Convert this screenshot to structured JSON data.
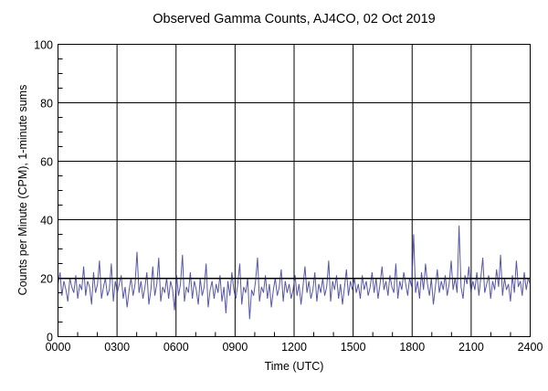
{
  "chart_data": {
    "type": "line",
    "title": "Observed Gamma Counts, AJ4CO, 02 Oct 2019",
    "xlabel": "Time (UTC)",
    "ylabel": "Counts per Minute (CPM), 1-minute sums",
    "xlim": [
      0,
      24
    ],
    "ylim": [
      0,
      100
    ],
    "x_ticks": [
      "0000",
      "0300",
      "0600",
      "0900",
      "1200",
      "1500",
      "1800",
      "2100",
      "2400"
    ],
    "y_ticks": [
      "0",
      "20",
      "40",
      "60",
      "80",
      "100"
    ],
    "grid": true,
    "series_color": "#3a3a9a",
    "series": [
      {
        "name": "CPM",
        "sample_interval_minutes": 6,
        "values": [
          18,
          22,
          14,
          19,
          16,
          12,
          20,
          17,
          15,
          21,
          13,
          18,
          16,
          24,
          14,
          19,
          17,
          11,
          22,
          15,
          18,
          26,
          13,
          17,
          20,
          14,
          16,
          25,
          12,
          19,
          15,
          18,
          21,
          13,
          17,
          10,
          16,
          20,
          14,
          18,
          29,
          15,
          19,
          13,
          17,
          22,
          11,
          16,
          24,
          14,
          18,
          27,
          12,
          17,
          15,
          20,
          13,
          19,
          16,
          9,
          21,
          14,
          18,
          28,
          12,
          17,
          15,
          22,
          13,
          19,
          16,
          11,
          20,
          14,
          17,
          25,
          10,
          16,
          19,
          13,
          18,
          15,
          21,
          12,
          17,
          8,
          19,
          14,
          22,
          16,
          13,
          18,
          25,
          11,
          17,
          15,
          20,
          6,
          16,
          14,
          19,
          27,
          12,
          17,
          15,
          21,
          13,
          18,
          10,
          16,
          20,
          14,
          17,
          23,
          12,
          19,
          15,
          18,
          13,
          16,
          21,
          14,
          18,
          11,
          17,
          24,
          15,
          19,
          13,
          16,
          22,
          12,
          18,
          15,
          20,
          14,
          17,
          26,
          12,
          19,
          16,
          21,
          13,
          18,
          11,
          17,
          23,
          14,
          19,
          16,
          20,
          15,
          18,
          13,
          21,
          16,
          19,
          14,
          17,
          22,
          15,
          20,
          13,
          18,
          24,
          16,
          19,
          14,
          21,
          17,
          15,
          25,
          13,
          19,
          16,
          22,
          18,
          14,
          20,
          17,
          35,
          15,
          19,
          13,
          22,
          16,
          25,
          18,
          14,
          20,
          11,
          17,
          23,
          15,
          19,
          16,
          21,
          14,
          18,
          26,
          16,
          20,
          15,
          38,
          17,
          13,
          21,
          18,
          24,
          15,
          19,
          16,
          22,
          14,
          20,
          27,
          15,
          18,
          21,
          13,
          19,
          16,
          23,
          17,
          28,
          14,
          20,
          16,
          18,
          12,
          21,
          15,
          26,
          17,
          19,
          14,
          22,
          16,
          20,
          18
        ]
      }
    ]
  }
}
